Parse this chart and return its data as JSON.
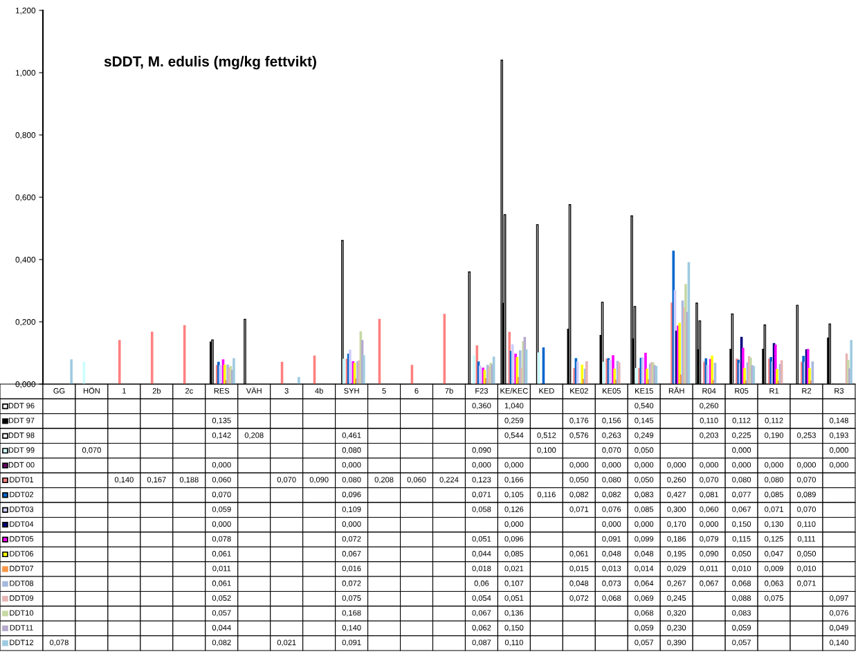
{
  "chart_data": {
    "type": "bar",
    "title": "sDDT, M. edulis (mg/kg fettvikt)",
    "categories": [
      "GG",
      "HÖN",
      "1",
      "2b",
      "2c",
      "RES",
      "VÄH",
      "3",
      "4b",
      "SYH",
      "5",
      "6",
      "7b",
      "F23",
      "KE/KEC",
      "KED",
      "KE02",
      "KE05",
      "KE15",
      "RÅH",
      "R04",
      "R05",
      "R1",
      "R2",
      "R3"
    ],
    "ylim": [
      0,
      1.2
    ],
    "yticks": [
      {
        "value": 0,
        "label": "0,000"
      },
      {
        "value": 0.2,
        "label": "0,200"
      },
      {
        "value": 0.4,
        "label": "0,400"
      },
      {
        "value": 0.6,
        "label": "0,600"
      },
      {
        "value": 0.8,
        "label": "0,800"
      },
      {
        "value": 1.0,
        "label": "1,000"
      },
      {
        "value": 1.2,
        "label": "1,200"
      }
    ],
    "legend": "bottom left",
    "series": [
      {
        "name": "DDT 96",
        "color": "#ffffff",
        "values": [
          null,
          null,
          null,
          null,
          null,
          null,
          null,
          null,
          null,
          null,
          null,
          null,
          null,
          0.36,
          1.04,
          null,
          null,
          null,
          0.54,
          null,
          0.26,
          null,
          null,
          null,
          null
        ],
        "value_labels": [
          null,
          null,
          null,
          null,
          null,
          null,
          null,
          null,
          null,
          null,
          null,
          null,
          null,
          "0,360",
          "1,040",
          null,
          null,
          null,
          "0,540",
          null,
          "0,260",
          null,
          null,
          null,
          null
        ]
      },
      {
        "name": "DDT 97",
        "color": "#000000",
        "values": [
          null,
          null,
          null,
          null,
          null,
          0.135,
          null,
          null,
          null,
          null,
          null,
          null,
          null,
          null,
          0.259,
          null,
          0.176,
          0.156,
          0.145,
          null,
          0.11,
          0.112,
          0.112,
          null,
          0.148
        ],
        "value_labels": [
          null,
          null,
          null,
          null,
          null,
          "0,135",
          null,
          null,
          null,
          null,
          null,
          null,
          null,
          null,
          "0,259",
          null,
          "0,176",
          "0,156",
          "0,145",
          null,
          "0,110",
          "0,112",
          "0,112",
          null,
          "0,148"
        ]
      },
      {
        "name": "DDT 98",
        "color": "#ffffff",
        "values": [
          null,
          null,
          null,
          null,
          null,
          0.142,
          0.208,
          null,
          null,
          0.461,
          null,
          null,
          null,
          null,
          0.544,
          0.512,
          0.576,
          0.263,
          0.249,
          null,
          0.203,
          0.225,
          0.19,
          0.253,
          0.193
        ],
        "value_labels": [
          null,
          null,
          null,
          null,
          null,
          "0,142",
          "0,208",
          null,
          null,
          "0,461",
          null,
          null,
          null,
          null,
          "0,544",
          "0,512",
          "0,576",
          "0,263",
          "0,249",
          null,
          "0,203",
          "0,225",
          "0,190",
          "0,253",
          "0,193"
        ]
      },
      {
        "name": "DDT 99",
        "color": "#ccffff",
        "values": [
          null,
          0.07,
          null,
          null,
          null,
          null,
          null,
          null,
          null,
          0.08,
          null,
          null,
          null,
          0.09,
          null,
          0.1,
          null,
          0.07,
          0.05,
          null,
          null,
          0,
          null,
          null,
          0
        ],
        "value_labels": [
          null,
          "0,070",
          null,
          null,
          null,
          null,
          null,
          null,
          null,
          "0,080",
          null,
          null,
          null,
          "0,090",
          null,
          "0,100",
          null,
          "0,070",
          "0,050",
          null,
          null,
          "0,000",
          null,
          null,
          "0,000"
        ]
      },
      {
        "name": "DDT 00",
        "color": "#660066",
        "values": [
          null,
          null,
          null,
          null,
          null,
          0,
          null,
          null,
          null,
          0,
          null,
          null,
          null,
          0,
          0,
          null,
          0,
          0,
          0,
          0,
          0,
          0,
          0,
          0,
          0
        ],
        "value_labels": [
          null,
          null,
          null,
          null,
          null,
          "0,000",
          null,
          null,
          null,
          "0,000",
          null,
          null,
          null,
          "0,000",
          "0,000",
          null,
          "0,000",
          "0,000",
          "0,000",
          "0,000",
          "0,000",
          "0,000",
          "0,000",
          "0,000",
          "0,000"
        ]
      },
      {
        "name": "DDT01",
        "color": "#ff8080",
        "values": [
          null,
          null,
          0.14,
          0.167,
          0.188,
          0.06,
          null,
          0.07,
          0.09,
          0.08,
          0.208,
          0.06,
          0.224,
          0.123,
          0.166,
          null,
          0.05,
          0.08,
          0.05,
          0.26,
          0.07,
          0.08,
          0.08,
          0.07,
          null
        ],
        "value_labels": [
          null,
          null,
          "0,140",
          "0,167",
          "0,188",
          "0,060",
          null,
          "0,070",
          "0,090",
          "0,080",
          "0,208",
          "0,060",
          "0,224",
          "0,123",
          "0,166",
          null,
          "0,050",
          "0,080",
          "0,050",
          "0,260",
          "0,070",
          "0,080",
          "0,080",
          "0,070",
          null
        ]
      },
      {
        "name": "DDT02",
        "color": "#0066cc",
        "values": [
          null,
          null,
          null,
          null,
          null,
          0.07,
          null,
          null,
          null,
          0.096,
          null,
          null,
          null,
          0.071,
          0.105,
          0.116,
          0.082,
          0.082,
          0.083,
          0.427,
          0.081,
          0.077,
          0.085,
          0.089,
          null
        ],
        "value_labels": [
          null,
          null,
          null,
          null,
          null,
          "0,070",
          null,
          null,
          null,
          "0,096",
          null,
          null,
          null,
          "0,071",
          "0,105",
          "0,116",
          "0,082",
          "0,082",
          "0,083",
          "0,427",
          "0,081",
          "0,077",
          "0,085",
          "0,089",
          null
        ]
      },
      {
        "name": "DDT03",
        "color": "#ccccff",
        "values": [
          null,
          null,
          null,
          null,
          null,
          0.059,
          null,
          null,
          null,
          0.109,
          null,
          null,
          null,
          0.058,
          0.126,
          null,
          0.071,
          0.076,
          0.085,
          0.3,
          0.06,
          0.067,
          0.071,
          0.07,
          null
        ],
        "value_labels": [
          null,
          null,
          null,
          null,
          null,
          "0,059",
          null,
          null,
          null,
          "0,109",
          null,
          null,
          null,
          "0,058",
          "0,126",
          null,
          "0,071",
          "0,076",
          "0,085",
          "0,300",
          "0,060",
          "0,067",
          "0,071",
          "0,070",
          null
        ]
      },
      {
        "name": "DDT04",
        "color": "#000080",
        "values": [
          null,
          null,
          null,
          null,
          null,
          0,
          null,
          null,
          null,
          0,
          null,
          null,
          null,
          null,
          0,
          null,
          null,
          0,
          0,
          0.17,
          0,
          0.15,
          0.13,
          0.11,
          null
        ],
        "value_labels": [
          null,
          null,
          null,
          null,
          null,
          "0,000",
          null,
          null,
          null,
          "0,000",
          null,
          null,
          null,
          null,
          "0,000",
          null,
          null,
          "0,000",
          "0,000",
          "0,170",
          "0,000",
          "0,150",
          "0,130",
          "0,110",
          null
        ]
      },
      {
        "name": "DDT05",
        "color": "#ff00ff",
        "values": [
          null,
          null,
          null,
          null,
          null,
          0.078,
          null,
          null,
          null,
          0.072,
          null,
          null,
          null,
          0.051,
          0.096,
          null,
          null,
          0.091,
          0.099,
          0.186,
          0.079,
          0.115,
          0.125,
          0.111,
          null
        ],
        "value_labels": [
          null,
          null,
          null,
          null,
          null,
          "0,078",
          null,
          null,
          null,
          "0,072",
          null,
          null,
          null,
          "0,051",
          "0,096",
          null,
          null,
          "0,091",
          "0,099",
          "0,186",
          "0,079",
          "0,115",
          "0,125",
          "0,111",
          null
        ]
      },
      {
        "name": "DDT06",
        "color": "#ffff00",
        "values": [
          null,
          null,
          null,
          null,
          null,
          0.061,
          null,
          null,
          null,
          0.067,
          null,
          null,
          null,
          0.044,
          0.085,
          null,
          0.061,
          0.048,
          0.048,
          0.195,
          0.09,
          0.05,
          0.047,
          0.05,
          null
        ],
        "value_labels": [
          null,
          null,
          null,
          null,
          null,
          "0,061",
          null,
          null,
          null,
          "0,067",
          null,
          null,
          null,
          "0,044",
          "0,085",
          null,
          "0,061",
          "0,048",
          "0,048",
          "0,195",
          "0,090",
          "0,050",
          "0,047",
          "0,050",
          null
        ]
      },
      {
        "name": "DDT07",
        "color": "#f79646",
        "values": [
          null,
          null,
          null,
          null,
          null,
          0.011,
          null,
          null,
          null,
          0.016,
          null,
          null,
          null,
          0.018,
          0.021,
          null,
          0.015,
          0.013,
          0.014,
          0.029,
          0.011,
          0.01,
          0.009,
          0.01,
          null
        ],
        "value_labels": [
          null,
          null,
          null,
          null,
          null,
          "0,011",
          null,
          null,
          null,
          "0,016",
          null,
          null,
          null,
          "0,018",
          "0,021",
          null,
          "0,015",
          "0,013",
          "0,014",
          "0,029",
          "0,011",
          "0,010",
          "0,009",
          "0,010",
          null
        ]
      },
      {
        "name": "DDT08",
        "color": "#a7b9dd",
        "values": [
          null,
          null,
          null,
          null,
          null,
          0.061,
          null,
          null,
          null,
          0.072,
          null,
          null,
          null,
          0.06,
          0.107,
          null,
          0.048,
          0.073,
          0.064,
          0.267,
          0.067,
          0.068,
          0.063,
          0.071,
          null
        ],
        "value_labels": [
          null,
          null,
          null,
          null,
          null,
          "0,061",
          null,
          null,
          null,
          "0,072",
          null,
          null,
          null,
          "0,06",
          "0,107",
          null,
          "0,048",
          "0,073",
          "0,064",
          "0,267",
          "0,067",
          "0,068",
          "0,063",
          "0,071",
          null
        ]
      },
      {
        "name": "DDT09",
        "color": "#e6b4b4",
        "values": [
          null,
          null,
          null,
          null,
          null,
          0.052,
          null,
          null,
          null,
          0.075,
          null,
          null,
          null,
          0.054,
          0.051,
          null,
          0.072,
          0.068,
          0.069,
          0.245,
          null,
          0.088,
          0.075,
          null,
          0.097
        ],
        "value_labels": [
          null,
          null,
          null,
          null,
          null,
          "0,052",
          null,
          null,
          null,
          "0,075",
          null,
          null,
          null,
          "0,054",
          "0,051",
          null,
          "0,072",
          "0,068",
          "0,069",
          "0,245",
          null,
          "0,088",
          "0,075",
          null,
          "0,097"
        ]
      },
      {
        "name": "DDT10",
        "color": "#c6d9a4",
        "values": [
          null,
          null,
          null,
          null,
          null,
          0.057,
          null,
          null,
          null,
          0.168,
          null,
          null,
          null,
          0.067,
          0.136,
          null,
          null,
          null,
          0.068,
          0.32,
          null,
          0.083,
          null,
          null,
          0.076
        ],
        "value_labels": [
          null,
          null,
          null,
          null,
          null,
          "0,057",
          null,
          null,
          null,
          "0,168",
          null,
          null,
          null,
          "0,067",
          "0,136",
          null,
          null,
          null,
          "0,068",
          "0,320",
          null,
          "0,083",
          null,
          null,
          "0,076"
        ]
      },
      {
        "name": "DDT11",
        "color": "#b6aacf",
        "values": [
          null,
          null,
          null,
          null,
          null,
          0.044,
          null,
          null,
          null,
          0.14,
          null,
          null,
          null,
          0.062,
          0.15,
          null,
          null,
          null,
          0.059,
          0.23,
          null,
          0.059,
          null,
          null,
          0.049
        ],
        "value_labels": [
          null,
          null,
          null,
          null,
          null,
          "0,044",
          null,
          null,
          null,
          "0,140",
          null,
          null,
          null,
          "0,062",
          "0,150",
          null,
          null,
          null,
          "0,059",
          "0,230",
          null,
          "0,059",
          null,
          null,
          "0,049"
        ]
      },
      {
        "name": "DDT12",
        "color": "#9ecbe0",
        "values": [
          0.078,
          null,
          null,
          null,
          null,
          0.082,
          null,
          0.021,
          null,
          0.091,
          null,
          null,
          null,
          0.087,
          0.11,
          null,
          null,
          null,
          0.057,
          0.39,
          null,
          0.057,
          null,
          null,
          0.14
        ],
        "value_labels": [
          "0,078",
          null,
          null,
          null,
          null,
          "0,082",
          null,
          "0,021",
          null,
          "0,091",
          null,
          null,
          null,
          "0,087",
          "0,110",
          null,
          null,
          null,
          "0,057",
          "0,390",
          null,
          "0,057",
          null,
          null,
          "0,140"
        ]
      }
    ]
  }
}
